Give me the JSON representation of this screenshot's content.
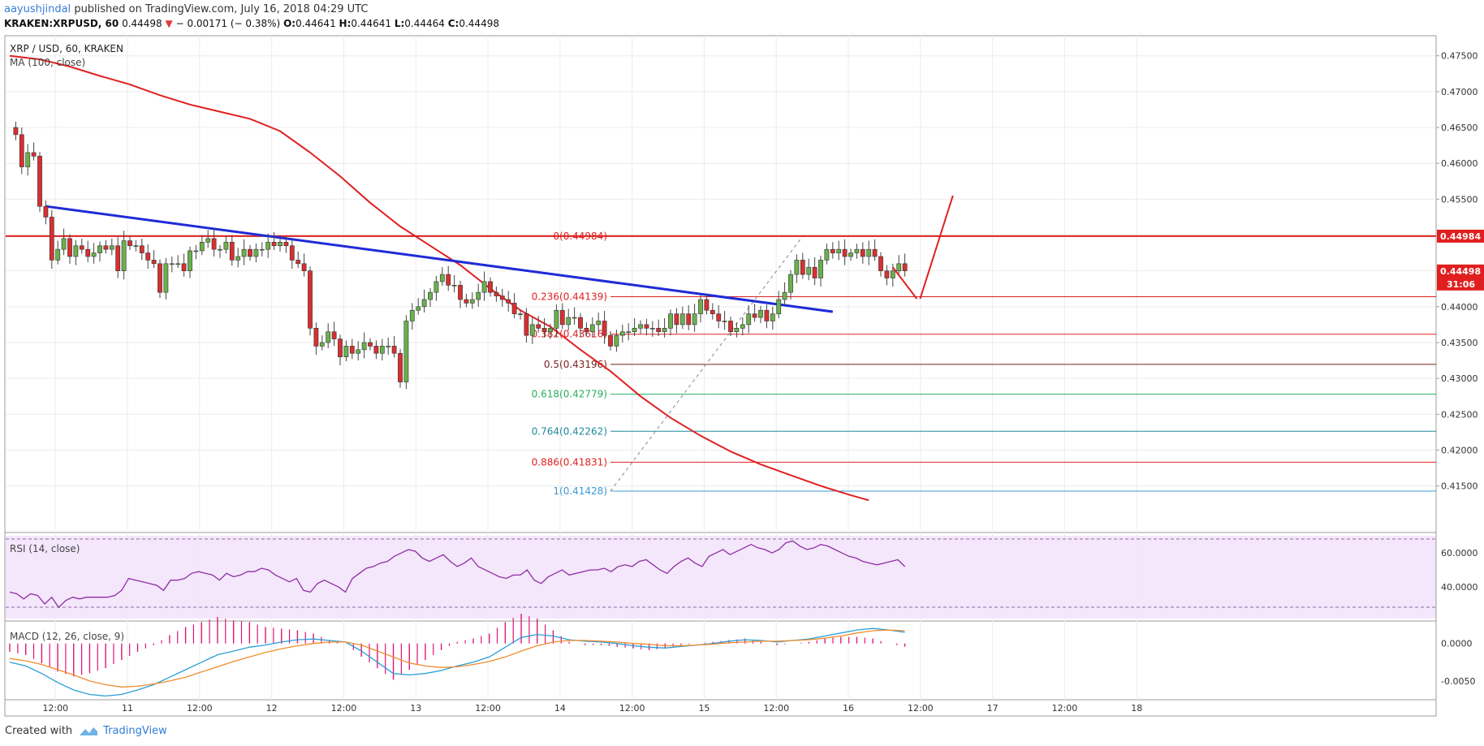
{
  "header": {
    "publisher": "aayushjindal",
    "published_text": "published on TradingView.com, July 16, 2018 04:29 UTC",
    "ticker": "KRAKEN:XRPUSD, 60",
    "last": "0.44498",
    "change": "− 0.00171 (− 0.38%)",
    "o_label": "O:",
    "o": "0.44641",
    "h_label": "H:",
    "h": "0.44641",
    "l_label": "L:",
    "l": "0.44464",
    "c_label": "C:",
    "c": "0.44498"
  },
  "footer": {
    "created_with": "Created with",
    "brand": "TradingView"
  },
  "colors": {
    "up": "#6ab04c",
    "down": "#d63031",
    "ma": "#e02020",
    "trend": "#1f2bd6",
    "rsi": "#8e2ea3",
    "macd": "#2a9fd6",
    "signal": "#f08c2e",
    "hist": "#e0137a"
  },
  "chart_data": {
    "type": "candlestick",
    "main_title": "XRP / USD, 60, KRAKEN",
    "indicator_label": "MA (100, close)",
    "y_ticks": [
      "0.47500",
      "0.47000",
      "0.46500",
      "0.46000",
      "0.45500",
      "0.45000",
      "0.44500",
      "0.44000",
      "0.43500",
      "0.43000",
      "0.42500",
      "0.42000",
      "0.41500"
    ],
    "ylim": [
      0.4085,
      0.4778
    ],
    "x_ticks": [
      {
        "label": "12:00",
        "t": 7.6
      },
      {
        "label": "11",
        "t": 19.6
      },
      {
        "label": "12:00",
        "t": 31.6
      },
      {
        "label": "12",
        "t": 43.6
      },
      {
        "label": "12:00",
        "t": 55.6
      },
      {
        "label": "13",
        "t": 67.6
      },
      {
        "label": "12:00",
        "t": 79.6
      },
      {
        "label": "14",
        "t": 91.6
      },
      {
        "label": "12:00",
        "t": 103.6
      },
      {
        "label": "15",
        "t": 115.6
      },
      {
        "label": "12:00",
        "t": 127.6
      },
      {
        "label": "16",
        "t": 139.6
      },
      {
        "label": "12:00",
        "t": 151.6
      },
      {
        "label": "17",
        "t": 163.6
      },
      {
        "label": "12:00",
        "t": 175.6
      },
      {
        "label": "18",
        "t": 187.6
      }
    ],
    "closes": [
      0.465,
      0.464,
      0.4595,
      0.4615,
      0.461,
      0.454,
      0.4525,
      0.4465,
      0.448,
      0.4495,
      0.447,
      0.4485,
      0.448,
      0.447,
      0.4475,
      0.4485,
      0.448,
      0.4485,
      0.445,
      0.4492,
      0.4485,
      0.4485,
      0.4475,
      0.4465,
      0.446,
      0.442,
      0.446,
      0.446,
      0.446,
      0.445,
      0.4478,
      0.4478,
      0.449,
      0.4495,
      0.448,
      0.448,
      0.449,
      0.4465,
      0.447,
      0.448,
      0.447,
      0.448,
      0.448,
      0.449,
      0.4485,
      0.449,
      0.4485,
      0.4465,
      0.446,
      0.445,
      0.437,
      0.4345,
      0.435,
      0.4365,
      0.4355,
      0.433,
      0.4345,
      0.4335,
      0.434,
      0.435,
      0.4345,
      0.4335,
      0.4345,
      0.4345,
      0.4335,
      0.4295,
      0.438,
      0.4395,
      0.44,
      0.441,
      0.442,
      0.4435,
      0.4445,
      0.443,
      0.443,
      0.441,
      0.4405,
      0.441,
      0.442,
      0.4435,
      0.442,
      0.4415,
      0.441,
      0.4405,
      0.439,
      0.439,
      0.436,
      0.4375,
      0.437,
      0.4365,
      0.437,
      0.4395,
      0.4375,
      0.4385,
      0.4385,
      0.437,
      0.4365,
      0.4375,
      0.438,
      0.436,
      0.4345,
      0.436,
      0.4365,
      0.4365,
      0.437,
      0.4375,
      0.437,
      0.437,
      0.4365,
      0.437,
      0.439,
      0.4375,
      0.439,
      0.4375,
      0.439,
      0.441,
      0.4395,
      0.439,
      0.438,
      0.438,
      0.4365,
      0.437,
      0.4375,
      0.439,
      0.4385,
      0.4395,
      0.438,
      0.439,
      0.441,
      0.442,
      0.4445,
      0.4465,
      0.4445,
      0.4455,
      0.444,
      0.4465,
      0.448,
      0.4475,
      0.448,
      0.447,
      0.4475,
      0.448,
      0.447,
      0.448,
      0.447,
      0.445,
      0.444,
      0.445,
      0.446,
      0.445
    ],
    "ma100": [
      {
        "t": 0,
        "v": 0.475
      },
      {
        "t": 5,
        "v": 0.4745
      },
      {
        "t": 10,
        "v": 0.4735
      },
      {
        "t": 15,
        "v": 0.4722
      },
      {
        "t": 20,
        "v": 0.471
      },
      {
        "t": 25,
        "v": 0.4695
      },
      {
        "t": 30,
        "v": 0.4682
      },
      {
        "t": 35,
        "v": 0.4672
      },
      {
        "t": 40,
        "v": 0.4662
      },
      {
        "t": 45,
        "v": 0.4645
      },
      {
        "t": 50,
        "v": 0.4615
      },
      {
        "t": 55,
        "v": 0.4582
      },
      {
        "t": 60,
        "v": 0.4545
      },
      {
        "t": 65,
        "v": 0.4512
      },
      {
        "t": 70,
        "v": 0.4485
      },
      {
        "t": 75,
        "v": 0.4458
      },
      {
        "t": 80,
        "v": 0.4425
      },
      {
        "t": 85,
        "v": 0.4395
      },
      {
        "t": 90,
        "v": 0.4372
      },
      {
        "t": 95,
        "v": 0.434
      },
      {
        "t": 100,
        "v": 0.431
      },
      {
        "t": 105,
        "v": 0.4275
      },
      {
        "t": 110,
        "v": 0.4245
      },
      {
        "t": 115,
        "v": 0.422
      },
      {
        "t": 120,
        "v": 0.4198
      },
      {
        "t": 125,
        "v": 0.418
      },
      {
        "t": 130,
        "v": 0.4165
      },
      {
        "t": 135,
        "v": 0.415
      },
      {
        "t": 140,
        "v": 0.4137
      },
      {
        "t": 143,
        "v": 0.413
      }
    ],
    "trend_line": [
      {
        "t": 6,
        "v": 0.454
      },
      {
        "t": 137,
        "v": 0.4393
      }
    ],
    "horizontal_resistance": 0.44984,
    "fib_levels": [
      {
        "label": "0(0.44984)",
        "value": 0.44984,
        "color": "#e02020"
      },
      {
        "label": "0.236(0.44139)",
        "value": 0.44139,
        "color": "#e02020"
      },
      {
        "label": "0.382(0.43616)",
        "value": 0.43616,
        "color": "#e02020"
      },
      {
        "label": "0.5(0.43196)",
        "value": 0.43196,
        "color": "#7a1f1f"
      },
      {
        "label": "0.618(0.42779)",
        "value": 0.42779,
        "color": "#27ae60"
      },
      {
        "label": "0.764(0.42262)",
        "value": 0.42262,
        "color": "#1f8a9e"
      },
      {
        "label": "0.886(0.41831)",
        "value": 0.41831,
        "color": "#e02020"
      },
      {
        "label": "1(0.41428)",
        "value": 0.41428,
        "color": "#3a9bd5"
      }
    ],
    "fib_start_t": 100,
    "resistance_flag": {
      "value": "0.44984"
    },
    "last_flag": {
      "value": "0.44498",
      "countdown": "31:06"
    },
    "rsi": {
      "label": "RSI (14, close)",
      "y_ticks": [
        "60.0000",
        "40.0000"
      ],
      "ylim": [
        20,
        72
      ],
      "values": [
        37,
        36,
        33,
        36,
        35,
        30,
        34,
        28,
        32,
        34,
        33,
        34,
        34,
        34,
        34,
        35,
        38,
        45,
        44,
        43,
        42,
        41,
        38,
        44,
        44,
        45,
        48,
        49,
        48,
        47,
        44,
        48,
        46,
        47,
        49,
        49,
        51,
        50,
        47,
        45,
        43,
        45,
        38,
        37,
        42,
        44,
        42,
        40,
        37,
        45,
        48,
        51,
        52,
        54,
        55,
        58,
        60,
        62,
        61,
        57,
        55,
        57,
        59,
        55,
        52,
        54,
        57,
        52,
        50,
        48,
        46,
        45,
        47,
        47,
        50,
        44,
        42,
        46,
        48,
        50,
        47,
        48,
        49,
        50,
        50,
        51,
        49,
        52,
        53,
        52,
        55,
        56,
        53,
        50,
        48,
        52,
        55,
        57,
        54,
        52,
        58,
        60,
        62,
        59,
        61,
        63,
        65,
        63,
        62,
        60,
        62,
        66,
        67,
        64,
        62,
        63,
        65,
        64,
        62,
        60,
        58,
        57,
        55,
        54,
        53,
        54,
        55,
        56,
        52
      ]
    },
    "macd": {
      "label": "MACD (12, 26, close, 9)",
      "y_ticks": [
        "0.0000",
        "-0.0050"
      ],
      "ylim": [
        -0.0075,
        0.003
      ],
      "macd_values": [
        -0.0025,
        -0.003,
        -0.004,
        -0.0052,
        -0.0062,
        -0.0068,
        -0.007,
        -0.0068,
        -0.0062,
        -0.0055,
        -0.0045,
        -0.0035,
        -0.0025,
        -0.0015,
        -0.001,
        -0.0005,
        -0.0002,
        0.0002,
        0.0005,
        0.0006,
        0.0004,
        0.0002,
        -0.001,
        -0.0025,
        -0.004,
        -0.0042,
        -0.004,
        -0.0036,
        -0.003,
        -0.0025,
        -0.0018,
        -0.0005,
        0.0008,
        0.0012,
        0.001,
        0.0005,
        0.0003,
        0.0002,
        0.0,
        -0.0003,
        -0.0005,
        -0.0006,
        -0.0004,
        -0.0002,
        0.0,
        0.0003,
        0.0005,
        0.0004,
        0.0002,
        0.0004,
        0.0006,
        0.001,
        0.0014,
        0.0018,
        0.002,
        0.0018,
        0.0015
      ],
      "signal_values": [
        -0.002,
        -0.0023,
        -0.0028,
        -0.0035,
        -0.0042,
        -0.005,
        -0.0055,
        -0.0058,
        -0.0057,
        -0.0054,
        -0.005,
        -0.0045,
        -0.0038,
        -0.0031,
        -0.0024,
        -0.0018,
        -0.0012,
        -0.0007,
        -0.0003,
        0.0,
        0.0002,
        0.0002,
        -0.0002,
        -0.001,
        -0.0018,
        -0.0026,
        -0.003,
        -0.0032,
        -0.0031,
        -0.0028,
        -0.0024,
        -0.0018,
        -0.001,
        -0.0003,
        0.0002,
        0.0004,
        0.0004,
        0.0003,
        0.0002,
        0.0,
        -0.0001,
        -0.0003,
        -0.0003,
        -0.0002,
        -0.0001,
        0.0001,
        0.0002,
        0.0003,
        0.0003,
        0.0004,
        0.0005,
        0.0007,
        0.001,
        0.0014,
        0.0017,
        0.0018,
        0.0017
      ]
    },
    "projection": [
      {
        "t": 147,
        "v": 0.4455
      },
      {
        "t": 151,
        "v": 0.4411
      },
      {
        "t": 151,
        "v": 0.4411
      },
      {
        "t": 157,
        "v": 0.4555
      }
    ]
  }
}
